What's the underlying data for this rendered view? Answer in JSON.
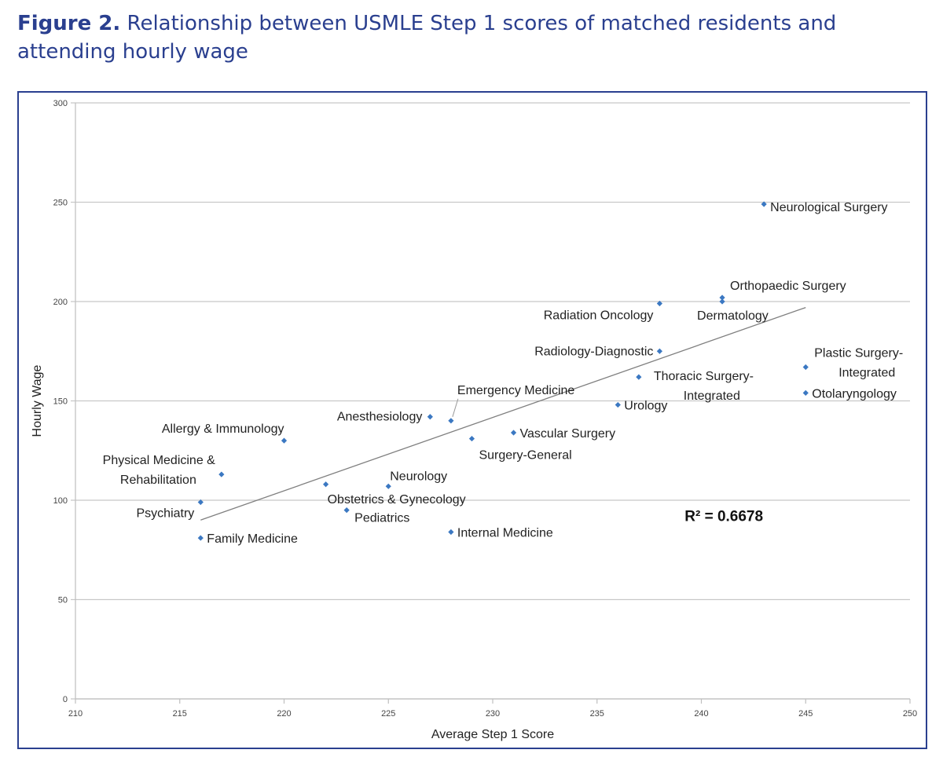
{
  "figure": {
    "label": "Figure 2.",
    "title": "Relationship between USMLE Step 1 scores of matched residents and attending hourly wage"
  },
  "colors": {
    "caption": "#2a3f8f",
    "frame": "#2a3f8f",
    "point": "#3b78c2",
    "gridline": "#c8c8c8",
    "trendline": "#7f7f7f"
  },
  "chart_data": {
    "type": "scatter",
    "title": "",
    "xlabel": "Average Step 1 Score",
    "ylabel": "Hourly Wage",
    "xlim": [
      210,
      250
    ],
    "ylim": [
      0,
      300
    ],
    "x_ticks": [
      210,
      215,
      220,
      225,
      230,
      235,
      240,
      245,
      250
    ],
    "y_ticks": [
      0,
      50,
      100,
      150,
      200,
      250,
      300
    ],
    "grid": "horizontal",
    "legend": "none",
    "annotation": "R² = 0.6678",
    "trendline": {
      "type": "linear",
      "x": [
        216,
        245
      ],
      "y": [
        90,
        197
      ]
    },
    "points": [
      {
        "label": "Neurological Surgery",
        "x": 243,
        "y": 249
      },
      {
        "label": "Orthopaedic Surgery",
        "x": 241,
        "y": 202
      },
      {
        "label": "Dermatology",
        "x": 241,
        "y": 200
      },
      {
        "label": "Radiation Oncology",
        "x": 238,
        "y": 199
      },
      {
        "label": "Radiology-Diagnostic",
        "x": 238,
        "y": 175
      },
      {
        "label": "Plastic Surgery-Integrated",
        "x": 245,
        "y": 167
      },
      {
        "label": "Thoracic Surgery-Integrated",
        "x": 237,
        "y": 162
      },
      {
        "label": "Otolaryngology",
        "x": 245,
        "y": 154
      },
      {
        "label": "Urology",
        "x": 236,
        "y": 148
      },
      {
        "label": "Emergency Medicine",
        "x": 228,
        "y": 140
      },
      {
        "label": "Anesthesiology",
        "x": 227,
        "y": 142
      },
      {
        "label": "Vascular Surgery",
        "x": 231,
        "y": 134
      },
      {
        "label": "Surgery-General",
        "x": 229,
        "y": 131
      },
      {
        "label": "Allergy & Immunology",
        "x": 220,
        "y": 130
      },
      {
        "label": "Physical Medicine & Rehabilitation",
        "x": 217,
        "y": 113
      },
      {
        "label": "Obstetrics & Gynecology",
        "x": 222,
        "y": 108
      },
      {
        "label": "Neurology",
        "x": 225,
        "y": 107
      },
      {
        "label": "Psychiatry",
        "x": 216,
        "y": 99
      },
      {
        "label": "Pediatrics",
        "x": 223,
        "y": 95
      },
      {
        "label": "Internal Medicine",
        "x": 228,
        "y": 84
      },
      {
        "label": "Family Medicine",
        "x": 216,
        "y": 81
      }
    ]
  }
}
